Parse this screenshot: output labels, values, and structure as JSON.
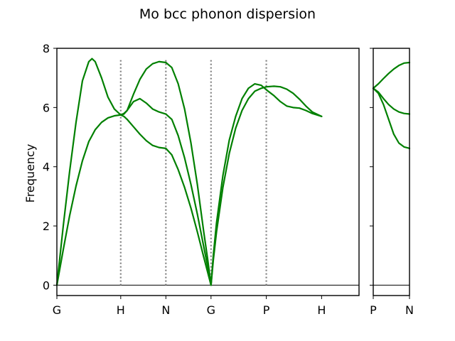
{
  "chart_data": {
    "type": "line",
    "title": "Mo bcc phonon dispersion",
    "ylabel": "Frequency",
    "ylim": [
      -0.35,
      8
    ],
    "yticks": [
      0,
      2,
      4,
      6,
      8
    ],
    "line_color": "#008000",
    "guide_color": "#808080",
    "panels": [
      {
        "id": "main",
        "xlim": [
          0,
          4.732
        ],
        "ticks": [
          {
            "x": 0,
            "label": "G"
          },
          {
            "x": 1.0,
            "label": "H"
          },
          {
            "x": 1.707,
            "label": "N"
          },
          {
            "x": 2.414,
            "label": "G"
          },
          {
            "x": 3.28,
            "label": "P"
          },
          {
            "x": 4.146,
            "label": "H"
          }
        ],
        "guides": [
          1.0,
          1.707,
          2.414,
          3.28
        ],
        "series": [
          {
            "x": [
              0,
              0.1,
              0.2,
              0.3,
              0.4,
              0.5,
              0.55,
              0.6,
              0.7,
              0.8,
              0.9,
              1.0
            ],
            "y": [
              0,
              2.0,
              3.85,
              5.5,
              6.9,
              7.55,
              7.65,
              7.55,
              7.0,
              6.35,
              5.95,
              5.75
            ]
          },
          {
            "x": [
              0,
              0.1,
              0.2,
              0.3,
              0.4,
              0.5,
              0.6,
              0.7,
              0.8,
              0.9,
              1.0
            ],
            "y": [
              0,
              1.2,
              2.35,
              3.35,
              4.2,
              4.85,
              5.25,
              5.5,
              5.65,
              5.72,
              5.75
            ]
          },
          {
            "x": [
              1.0,
              1.05,
              1.1,
              1.2,
              1.3,
              1.4,
              1.5,
              1.6,
              1.707
            ],
            "y": [
              5.75,
              5.78,
              5.9,
              6.45,
              6.95,
              7.3,
              7.48,
              7.55,
              7.52
            ]
          },
          {
            "x": [
              1.0,
              1.05,
              1.1,
              1.2,
              1.3,
              1.4,
              1.5,
              1.6,
              1.707
            ],
            "y": [
              5.75,
              5.8,
              5.9,
              6.2,
              6.3,
              6.15,
              5.95,
              5.85,
              5.78
            ]
          },
          {
            "x": [
              1.0,
              1.05,
              1.1,
              1.2,
              1.3,
              1.4,
              1.5,
              1.6,
              1.707
            ],
            "y": [
              5.75,
              5.7,
              5.6,
              5.35,
              5.1,
              4.88,
              4.72,
              4.65,
              4.62
            ]
          },
          {
            "x": [
              1.707,
              1.8,
              1.9,
              2.0,
              2.1,
              2.2,
              2.3,
              2.36,
              2.414
            ],
            "y": [
              7.52,
              7.35,
              6.8,
              5.95,
              4.8,
              3.4,
              1.8,
              0.9,
              0
            ]
          },
          {
            "x": [
              1.707,
              1.8,
              1.9,
              2.0,
              2.1,
              2.2,
              2.3,
              2.36,
              2.414
            ],
            "y": [
              5.78,
              5.6,
              5.05,
              4.3,
              3.4,
              2.4,
              1.3,
              0.65,
              0
            ]
          },
          {
            "x": [
              1.707,
              1.8,
              1.9,
              2.0,
              2.1,
              2.2,
              2.3,
              2.36,
              2.414
            ],
            "y": [
              4.62,
              4.4,
              3.9,
              3.3,
              2.6,
              1.8,
              0.95,
              0.45,
              0
            ]
          },
          {
            "x": [
              2.414,
              2.45,
              2.5,
              2.6,
              2.7,
              2.8,
              2.9,
              3.0,
              3.1,
              3.2,
              3.28,
              3.4,
              3.5,
              3.6,
              3.7,
              3.8,
              3.9,
              4.0,
              4.146
            ],
            "y": [
              0,
              1.0,
              2.1,
              3.7,
              4.9,
              5.7,
              6.3,
              6.65,
              6.8,
              6.75,
              6.6,
              6.4,
              6.2,
              6.05,
              6.0,
              5.98,
              5.9,
              5.8,
              5.7
            ]
          },
          {
            "x": [
              2.414,
              2.45,
              2.5,
              2.6,
              2.7,
              2.8,
              2.9,
              3.0,
              3.1,
              3.2,
              3.28,
              3.4,
              3.5,
              3.6,
              3.7,
              3.8,
              3.9,
              4.0,
              4.146
            ],
            "y": [
              0,
              0.85,
              1.8,
              3.3,
              4.45,
              5.3,
              5.9,
              6.3,
              6.55,
              6.65,
              6.7,
              6.72,
              6.7,
              6.62,
              6.48,
              6.28,
              6.05,
              5.85,
              5.7
            ]
          }
        ]
      },
      {
        "id": "inset",
        "xlim": [
          0,
          0.707
        ],
        "ticks": [
          {
            "x": 0,
            "label": "P"
          },
          {
            "x": 0.707,
            "label": "N"
          }
        ],
        "series": [
          {
            "x": [
              0,
              0.1,
              0.2,
              0.3,
              0.4,
              0.5,
              0.6,
              0.707
            ],
            "y": [
              6.65,
              6.8,
              6.98,
              7.15,
              7.3,
              7.42,
              7.5,
              7.52
            ]
          },
          {
            "x": [
              0,
              0.1,
              0.2,
              0.3,
              0.4,
              0.5,
              0.6,
              0.707
            ],
            "y": [
              6.65,
              6.52,
              6.3,
              6.1,
              5.95,
              5.85,
              5.8,
              5.78
            ]
          },
          {
            "x": [
              0,
              0.1,
              0.2,
              0.3,
              0.4,
              0.5,
              0.6,
              0.707
            ],
            "y": [
              6.65,
              6.48,
              6.1,
              5.6,
              5.1,
              4.8,
              4.67,
              4.62
            ]
          }
        ]
      }
    ]
  }
}
